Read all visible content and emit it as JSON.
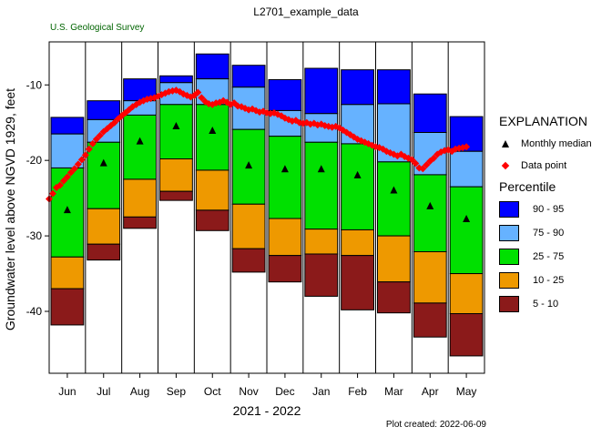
{
  "header": {
    "title": "L2701_example_data",
    "agency": "U.S. Geological Survey",
    "created": "Plot created: 2022-06-09"
  },
  "legend": {
    "heading": "EXPLANATION",
    "median_label": "Monthly median",
    "point_label": "Data point",
    "percentile_heading": "Percentile",
    "percentiles": [
      {
        "label": "90 - 95",
        "color": "#0000ff"
      },
      {
        "label": "75 - 90",
        "color": "#66b2ff"
      },
      {
        "label": "25 - 75",
        "color": "#00e000"
      },
      {
        "label": "10 - 25",
        "color": "#ee9900"
      },
      {
        "label": "5 - 10",
        "color": "#8b1a1a"
      }
    ]
  },
  "chart_data": {
    "type": "bar",
    "title": "L2701_example_data",
    "xlabel": "2021 - 2022",
    "ylabel": "Groundwater level above NGVD 1929, feet",
    "ylim": [
      -48.2,
      -4.3
    ],
    "yticks": [
      -10,
      -20,
      -30,
      -40
    ],
    "categories": [
      "Jun",
      "Jul",
      "Aug",
      "Sep",
      "Oct",
      "Nov",
      "Dec",
      "Jan",
      "Feb",
      "Mar",
      "Apr",
      "May"
    ],
    "percentile_bars": [
      {
        "month": "Jun",
        "p5": -41.8,
        "p10": -37.0,
        "p25": -32.8,
        "p75": -21.0,
        "p90": -16.5,
        "p95": -14.3
      },
      {
        "month": "Jul",
        "p5": -33.2,
        "p10": -31.1,
        "p25": -26.4,
        "p75": -17.6,
        "p90": -14.6,
        "p95": -12.1
      },
      {
        "month": "Aug",
        "p5": -29.0,
        "p10": -27.5,
        "p25": -22.5,
        "p75": -14.0,
        "p90": -12.1,
        "p95": -9.2
      },
      {
        "month": "Sep",
        "p5": -25.3,
        "p10": -24.1,
        "p25": -19.8,
        "p75": -12.6,
        "p90": -9.7,
        "p95": -8.8
      },
      {
        "month": "Oct",
        "p5": -29.3,
        "p10": -26.6,
        "p25": -21.3,
        "p75": -12.6,
        "p90": -9.2,
        "p95": -5.9
      },
      {
        "month": "Nov",
        "p5": -34.8,
        "p10": -31.7,
        "p25": -25.8,
        "p75": -15.9,
        "p90": -10.3,
        "p95": -7.4
      },
      {
        "month": "Dec",
        "p5": -36.1,
        "p10": -32.6,
        "p25": -27.7,
        "p75": -16.8,
        "p90": -13.4,
        "p95": -9.3
      },
      {
        "month": "Jan",
        "p5": -38.0,
        "p10": -32.4,
        "p25": -29.1,
        "p75": -17.6,
        "p90": -13.8,
        "p95": -7.8
      },
      {
        "month": "Feb",
        "p5": -39.8,
        "p10": -32.6,
        "p25": -29.2,
        "p75": -17.8,
        "p90": -12.6,
        "p95": -8.0
      },
      {
        "month": "Mar",
        "p5": -40.2,
        "p10": -36.1,
        "p25": -30.0,
        "p75": -20.2,
        "p90": -12.5,
        "p95": -8.0
      },
      {
        "month": "Apr",
        "p5": -43.4,
        "p10": -38.9,
        "p25": -32.1,
        "p75": -21.9,
        "p90": -16.3,
        "p95": -11.2
      },
      {
        "month": "May",
        "p5": -45.9,
        "p10": -40.3,
        "p25": -35.0,
        "p75": -23.5,
        "p90": -18.8,
        "p95": -14.2
      }
    ],
    "monthly_median": [
      -26.5,
      -20.3,
      -17.4,
      -15.4,
      -16.0,
      -20.6,
      -21.1,
      -21.1,
      -21.9,
      -23.9,
      -26.0,
      -27.7
    ],
    "data_points": [
      {
        "x": 0.0,
        "y": -25.1
      },
      {
        "x": 0.1,
        "y": -24.4
      },
      {
        "x": 0.2,
        "y": -23.6
      },
      {
        "x": 0.3,
        "y": -23.3
      },
      {
        "x": 0.4,
        "y": -22.7
      },
      {
        "x": 0.5,
        "y": -22.2
      },
      {
        "x": 0.6,
        "y": -21.6
      },
      {
        "x": 0.7,
        "y": -21.1
      },
      {
        "x": 0.8,
        "y": -20.5
      },
      {
        "x": 0.9,
        "y": -19.9
      },
      {
        "x": 1.0,
        "y": -19.3
      },
      {
        "x": 1.1,
        "y": -18.5
      },
      {
        "x": 1.2,
        "y": -17.8
      },
      {
        "x": 1.3,
        "y": -17.2
      },
      {
        "x": 1.4,
        "y": -16.7
      },
      {
        "x": 1.5,
        "y": -16.2
      },
      {
        "x": 1.6,
        "y": -15.8
      },
      {
        "x": 1.7,
        "y": -15.4
      },
      {
        "x": 1.8,
        "y": -15.0
      },
      {
        "x": 1.9,
        "y": -14.5
      },
      {
        "x": 2.0,
        "y": -14.1
      },
      {
        "x": 2.1,
        "y": -13.7
      },
      {
        "x": 2.2,
        "y": -13.3
      },
      {
        "x": 2.3,
        "y": -12.9
      },
      {
        "x": 2.4,
        "y": -12.6
      },
      {
        "x": 2.5,
        "y": -12.3
      },
      {
        "x": 2.6,
        "y": -12.1
      },
      {
        "x": 2.7,
        "y": -11.9
      },
      {
        "x": 2.8,
        "y": -11.8
      },
      {
        "x": 2.9,
        "y": -11.7
      },
      {
        "x": 3.0,
        "y": -11.5
      },
      {
        "x": 3.1,
        "y": -11.3
      },
      {
        "x": 3.2,
        "y": -11.1
      },
      {
        "x": 3.3,
        "y": -10.9
      },
      {
        "x": 3.4,
        "y": -10.8
      },
      {
        "x": 3.5,
        "y": -10.7
      },
      {
        "x": 3.6,
        "y": -10.9
      },
      {
        "x": 3.7,
        "y": -11.2
      },
      {
        "x": 3.8,
        "y": -11.4
      },
      {
        "x": 3.9,
        "y": -11.6
      },
      {
        "x": 4.0,
        "y": -11.4
      },
      {
        "x": 4.1,
        "y": -11.0
      },
      {
        "x": 4.2,
        "y": -11.7
      },
      {
        "x": 4.3,
        "y": -12.2
      },
      {
        "x": 4.4,
        "y": -12.5
      },
      {
        "x": 4.5,
        "y": -12.6
      },
      {
        "x": 4.6,
        "y": -12.4
      },
      {
        "x": 4.7,
        "y": -12.3
      },
      {
        "x": 4.8,
        "y": -12.1
      },
      {
        "x": 4.9,
        "y": -12.3
      },
      {
        "x": 5.0,
        "y": -12.6
      },
      {
        "x": 5.1,
        "y": -12.4
      },
      {
        "x": 5.2,
        "y": -12.8
      },
      {
        "x": 5.3,
        "y": -12.9
      },
      {
        "x": 5.4,
        "y": -13.1
      },
      {
        "x": 5.5,
        "y": -13.3
      },
      {
        "x": 5.6,
        "y": -13.2
      },
      {
        "x": 5.7,
        "y": -13.4
      },
      {
        "x": 5.8,
        "y": -13.6
      },
      {
        "x": 5.9,
        "y": -13.5
      },
      {
        "x": 6.0,
        "y": -13.7
      },
      {
        "x": 6.1,
        "y": -13.8
      },
      {
        "x": 6.2,
        "y": -13.7
      },
      {
        "x": 6.3,
        "y": -13.9
      },
      {
        "x": 6.4,
        "y": -14.1
      },
      {
        "x": 6.5,
        "y": -14.4
      },
      {
        "x": 6.6,
        "y": -14.6
      },
      {
        "x": 6.7,
        "y": -14.8
      },
      {
        "x": 6.8,
        "y": -14.7
      },
      {
        "x": 6.9,
        "y": -15.0
      },
      {
        "x": 7.0,
        "y": -15.1
      },
      {
        "x": 7.1,
        "y": -15.0
      },
      {
        "x": 7.2,
        "y": -15.2
      },
      {
        "x": 7.3,
        "y": -15.1
      },
      {
        "x": 7.4,
        "y": -15.3
      },
      {
        "x": 7.5,
        "y": -15.2
      },
      {
        "x": 7.6,
        "y": -15.4
      },
      {
        "x": 7.7,
        "y": -15.5
      },
      {
        "x": 7.8,
        "y": -15.6
      },
      {
        "x": 7.9,
        "y": -15.5
      },
      {
        "x": 8.0,
        "y": -15.7
      },
      {
        "x": 8.1,
        "y": -16.0
      },
      {
        "x": 8.2,
        "y": -16.3
      },
      {
        "x": 8.3,
        "y": -16.6
      },
      {
        "x": 8.4,
        "y": -16.9
      },
      {
        "x": 8.5,
        "y": -17.2
      },
      {
        "x": 8.6,
        "y": -17.4
      },
      {
        "x": 8.7,
        "y": -17.6
      },
      {
        "x": 8.8,
        "y": -17.8
      },
      {
        "x": 8.9,
        "y": -18.0
      },
      {
        "x": 9.0,
        "y": -18.2
      },
      {
        "x": 9.1,
        "y": -18.3
      },
      {
        "x": 9.2,
        "y": -18.5
      },
      {
        "x": 9.3,
        "y": -18.8
      },
      {
        "x": 9.4,
        "y": -19.0
      },
      {
        "x": 9.5,
        "y": -19.2
      },
      {
        "x": 9.6,
        "y": -19.4
      },
      {
        "x": 9.7,
        "y": -19.2
      },
      {
        "x": 9.8,
        "y": -19.5
      },
      {
        "x": 9.9,
        "y": -19.7
      },
      {
        "x": 10.0,
        "y": -19.9
      },
      {
        "x": 10.1,
        "y": -20.4
      },
      {
        "x": 10.2,
        "y": -21.0
      },
      {
        "x": 10.3,
        "y": -21.1
      },
      {
        "x": 10.4,
        "y": -20.6
      },
      {
        "x": 10.5,
        "y": -20.1
      },
      {
        "x": 10.6,
        "y": -19.7
      },
      {
        "x": 10.7,
        "y": -19.2
      },
      {
        "x": 10.8,
        "y": -18.9
      },
      {
        "x": 10.9,
        "y": -18.7
      },
      {
        "x": 11.0,
        "y": -18.6
      },
      {
        "x": 11.1,
        "y": -18.8
      },
      {
        "x": 11.2,
        "y": -18.5
      },
      {
        "x": 11.3,
        "y": -18.4
      },
      {
        "x": 11.4,
        "y": -18.3
      },
      {
        "x": 11.5,
        "y": -18.2
      }
    ]
  }
}
